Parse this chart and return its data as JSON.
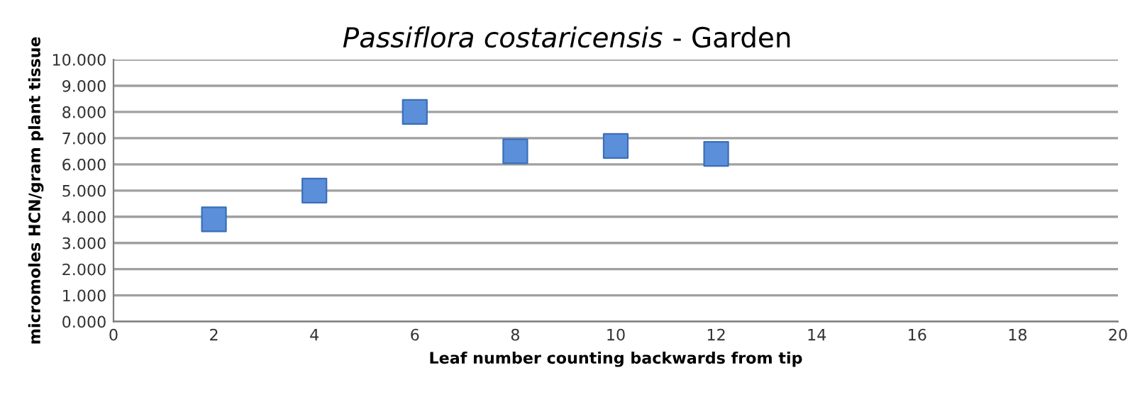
{
  "chart_data": {
    "type": "scatter",
    "title": "Passiflora costaricensis - Garden",
    "xlabel": "Leaf number counting backwards from tip",
    "ylabel": "micromoles HCN/gram plant tissue",
    "x": [
      2,
      4,
      6,
      8,
      10,
      12
    ],
    "series": [
      {
        "color": "#5b8fd9",
        "values": [
          3.9,
          5.0,
          8.0,
          6.5,
          6.7,
          6.4
        ]
      }
    ],
    "marker": "square",
    "grid": "y",
    "legend": false,
    "xlim": [
      0,
      20
    ],
    "xticks": [
      0,
      2,
      4,
      6,
      8,
      10,
      12,
      14,
      16,
      18,
      20
    ],
    "ylim": [
      0,
      10
    ],
    "yticks": [
      {
        "value": 0,
        "label": "0.000"
      },
      {
        "value": 1,
        "label": "1.000"
      },
      {
        "value": 2,
        "label": "2.000"
      },
      {
        "value": 3,
        "label": "3.000"
      },
      {
        "value": 4,
        "label": "4.000"
      },
      {
        "value": 5,
        "label": "5.000"
      },
      {
        "value": 6,
        "label": "6.000"
      },
      {
        "value": 7,
        "label": "7.000"
      },
      {
        "value": 8,
        "label": "8.000"
      },
      {
        "value": 9,
        "label": "9.000"
      },
      {
        "value": 10,
        "label": "10.000"
      }
    ]
  }
}
